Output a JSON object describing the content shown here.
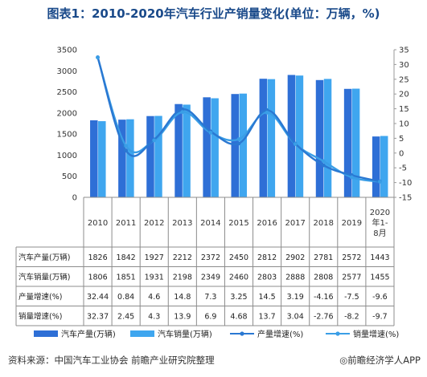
{
  "title": "图表1：2010-2020年汽车行业产销量变化(单位：万辆，%)",
  "source": "资料来源：中国汽车工业协会  前瞻产业研究院整理",
  "brand": "◎前瞻经济学人APP",
  "colors": {
    "production": "#2e6fd6",
    "sales": "#3fa6ef",
    "prod_growth": "#2a78d2",
    "sales_growth": "#3a9ee6"
  },
  "chart_data": {
    "type": "bar",
    "categories": [
      "2010",
      "2011",
      "2012",
      "2013",
      "2014",
      "2015",
      "2016",
      "2017",
      "2018",
      "2019",
      "2020年1-8月"
    ],
    "category_lines": [
      [
        "2010"
      ],
      [
        "2011"
      ],
      [
        "2012"
      ],
      [
        "2013"
      ],
      [
        "2014"
      ],
      [
        "2015"
      ],
      [
        "2016"
      ],
      [
        "2017"
      ],
      [
        "2018"
      ],
      [
        "2019"
      ],
      [
        "2020",
        "年1-",
        "8月"
      ]
    ],
    "left_axis": {
      "ylim": [
        0,
        3500
      ],
      "ticks": [
        0,
        500,
        1000,
        1500,
        2000,
        2500,
        3000,
        3500
      ]
    },
    "right_axis": {
      "ylim": [
        -15,
        35
      ],
      "ticks": [
        -15,
        -10,
        -5,
        0,
        5,
        10,
        15,
        20,
        25,
        30,
        35
      ]
    },
    "series": [
      {
        "name": "汽车产量(万辆)",
        "type": "bar",
        "axis": "left",
        "values": [
          1826,
          1842,
          1927,
          2212,
          2372,
          2450,
          2812,
          2902,
          2781,
          2572,
          1443
        ],
        "labels": [
          "1826",
          "1842",
          "1927",
          "2212",
          "2372",
          "2450",
          "2812",
          "2902",
          "2781",
          "2572",
          "1443"
        ]
      },
      {
        "name": "汽车销量(万辆)",
        "type": "bar",
        "axis": "left",
        "values": [
          1806,
          1851,
          1931,
          2198,
          2349,
          2460,
          2803,
          2888,
          2808,
          2577,
          1455
        ],
        "labels": [
          "1806",
          "1851",
          "1931",
          "2198",
          "2349",
          "2460",
          "2803",
          "2888",
          "2808",
          "2577",
          "1455"
        ]
      },
      {
        "name": "产量增速(%)",
        "type": "line",
        "axis": "right",
        "values": [
          32.44,
          0.84,
          4.6,
          14.8,
          7.3,
          3.25,
          14.5,
          3.19,
          -4.16,
          -7.5,
          -9.6
        ],
        "labels": [
          "32.44",
          "0.84",
          "4.6",
          "14.8",
          "7.3",
          "3.25",
          "14.5",
          "3.19",
          "-4.16",
          "-7.5",
          "-9.6"
        ]
      },
      {
        "name": "销量增速(%)",
        "type": "line",
        "axis": "right",
        "values": [
          32.37,
          2.45,
          4.3,
          13.9,
          6.9,
          4.68,
          13.7,
          3.04,
          -2.76,
          -8.2,
          -9.7
        ],
        "labels": [
          "32.37",
          "2.45",
          "4.3",
          "13.9",
          "6.9",
          "4.68",
          "13.7",
          "3.04",
          "-2.76",
          "-8.2",
          "-9.7"
        ]
      }
    ],
    "legend": [
      {
        "name": "汽车产量(万辆)",
        "kind": "bar"
      },
      {
        "name": "汽车销量(万辆)",
        "kind": "bar"
      },
      {
        "name": "产量增速(%)",
        "kind": "line"
      },
      {
        "name": "销量增速(%)",
        "kind": "line"
      }
    ],
    "legend_position": "bottom",
    "data_table": true,
    "grid": false
  }
}
